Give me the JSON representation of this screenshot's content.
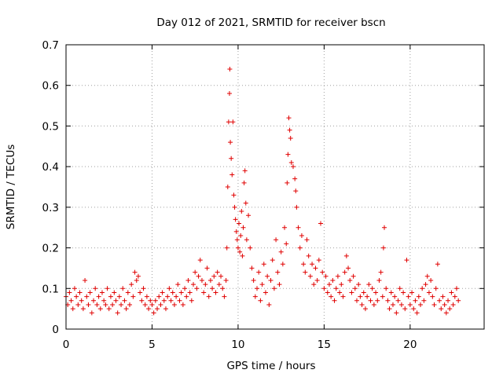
{
  "chart_data": {
    "type": "scatter",
    "title": "Day 012 of 2021, SRMTID for receiver bscn",
    "xlabel": "GPS time / hours",
    "ylabel": "SRMTID / TECUs",
    "xlim": [
      0,
      24.3
    ],
    "ylim": [
      0,
      0.7
    ],
    "xticks": [
      0,
      5,
      10,
      15,
      20
    ],
    "yticks": [
      0,
      0.1,
      0.2,
      0.3,
      0.4,
      0.5,
      0.6,
      0.7
    ],
    "xtick_labels": [
      "0",
      "5",
      "10",
      "15",
      "20"
    ],
    "ytick_labels": [
      "0",
      "0.1",
      "0.2",
      "0.3",
      "0.4",
      "0.5",
      "0.6",
      "0.7"
    ],
    "grid": true,
    "marker": "+",
    "series": [
      {
        "name": "SRMTID",
        "color": "#e00000",
        "points": [
          [
            0.0,
            0.08
          ],
          [
            0.1,
            0.06
          ],
          [
            0.2,
            0.09
          ],
          [
            0.3,
            0.07
          ],
          [
            0.4,
            0.05
          ],
          [
            0.5,
            0.1
          ],
          [
            0.6,
            0.08
          ],
          [
            0.7,
            0.06
          ],
          [
            0.8,
            0.09
          ],
          [
            0.9,
            0.07
          ],
          [
            1.0,
            0.05
          ],
          [
            1.1,
            0.12
          ],
          [
            1.2,
            0.08
          ],
          [
            1.3,
            0.06
          ],
          [
            1.4,
            0.09
          ],
          [
            1.5,
            0.04
          ],
          [
            1.6,
            0.07
          ],
          [
            1.7,
            0.1
          ],
          [
            1.8,
            0.06
          ],
          [
            1.9,
            0.08
          ],
          [
            2.0,
            0.05
          ],
          [
            2.1,
            0.09
          ],
          [
            2.2,
            0.07
          ],
          [
            2.3,
            0.06
          ],
          [
            2.4,
            0.1
          ],
          [
            2.5,
            0.05
          ],
          [
            2.6,
            0.08
          ],
          [
            2.7,
            0.06
          ],
          [
            2.8,
            0.09
          ],
          [
            2.9,
            0.07
          ],
          [
            3.0,
            0.04
          ],
          [
            3.1,
            0.08
          ],
          [
            3.2,
            0.06
          ],
          [
            3.3,
            0.1
          ],
          [
            3.4,
            0.07
          ],
          [
            3.5,
            0.05
          ],
          [
            3.6,
            0.09
          ],
          [
            3.7,
            0.06
          ],
          [
            3.8,
            0.11
          ],
          [
            3.9,
            0.08
          ],
          [
            4.0,
            0.14
          ],
          [
            4.1,
            0.12
          ],
          [
            4.2,
            0.13
          ],
          [
            4.3,
            0.09
          ],
          [
            4.4,
            0.07
          ],
          [
            4.5,
            0.1
          ],
          [
            4.6,
            0.06
          ],
          [
            4.7,
            0.08
          ],
          [
            4.8,
            0.05
          ],
          [
            4.9,
            0.07
          ],
          [
            5.0,
            0.06
          ],
          [
            5.1,
            0.04
          ],
          [
            5.2,
            0.07
          ],
          [
            5.3,
            0.05
          ],
          [
            5.4,
            0.08
          ],
          [
            5.5,
            0.06
          ],
          [
            5.6,
            0.09
          ],
          [
            5.7,
            0.07
          ],
          [
            5.8,
            0.05
          ],
          [
            5.9,
            0.08
          ],
          [
            6.0,
            0.1
          ],
          [
            6.1,
            0.07
          ],
          [
            6.2,
            0.09
          ],
          [
            6.3,
            0.06
          ],
          [
            6.4,
            0.08
          ],
          [
            6.5,
            0.11
          ],
          [
            6.6,
            0.07
          ],
          [
            6.7,
            0.09
          ],
          [
            6.8,
            0.06
          ],
          [
            6.9,
            0.1
          ],
          [
            7.0,
            0.08
          ],
          [
            7.1,
            0.12
          ],
          [
            7.2,
            0.09
          ],
          [
            7.3,
            0.07
          ],
          [
            7.4,
            0.11
          ],
          [
            7.5,
            0.14
          ],
          [
            7.6,
            0.1
          ],
          [
            7.7,
            0.13
          ],
          [
            7.8,
            0.17
          ],
          [
            7.9,
            0.12
          ],
          [
            8.0,
            0.09
          ],
          [
            8.1,
            0.11
          ],
          [
            8.2,
            0.15
          ],
          [
            8.3,
            0.08
          ],
          [
            8.4,
            0.12
          ],
          [
            8.5,
            0.1
          ],
          [
            8.6,
            0.13
          ],
          [
            8.7,
            0.09
          ],
          [
            8.8,
            0.14
          ],
          [
            8.9,
            0.11
          ],
          [
            9.0,
            0.13
          ],
          [
            9.1,
            0.1
          ],
          [
            9.2,
            0.08
          ],
          [
            9.3,
            0.12
          ],
          [
            9.35,
            0.2
          ],
          [
            9.4,
            0.35
          ],
          [
            9.45,
            0.51
          ],
          [
            9.5,
            0.58
          ],
          [
            9.52,
            0.64
          ],
          [
            9.55,
            0.46
          ],
          [
            9.6,
            0.42
          ],
          [
            9.65,
            0.38
          ],
          [
            9.7,
            0.51
          ],
          [
            9.75,
            0.33
          ],
          [
            9.8,
            0.3
          ],
          [
            9.85,
            0.27
          ],
          [
            9.9,
            0.24
          ],
          [
            9.95,
            0.22
          ],
          [
            10.0,
            0.2
          ],
          [
            10.05,
            0.26
          ],
          [
            10.1,
            0.19
          ],
          [
            10.15,
            0.23
          ],
          [
            10.2,
            0.29
          ],
          [
            10.25,
            0.18
          ],
          [
            10.3,
            0.25
          ],
          [
            10.35,
            0.36
          ],
          [
            10.4,
            0.39
          ],
          [
            10.45,
            0.31
          ],
          [
            10.5,
            0.22
          ],
          [
            10.6,
            0.28
          ],
          [
            10.7,
            0.2
          ],
          [
            10.8,
            0.15
          ],
          [
            10.9,
            0.12
          ],
          [
            11.0,
            0.08
          ],
          [
            11.1,
            0.1
          ],
          [
            11.2,
            0.14
          ],
          [
            11.3,
            0.07
          ],
          [
            11.4,
            0.11
          ],
          [
            11.5,
            0.16
          ],
          [
            11.6,
            0.09
          ],
          [
            11.7,
            0.13
          ],
          [
            11.8,
            0.06
          ],
          [
            11.9,
            0.12
          ],
          [
            12.0,
            0.17
          ],
          [
            12.1,
            0.1
          ],
          [
            12.2,
            0.22
          ],
          [
            12.3,
            0.14
          ],
          [
            12.4,
            0.11
          ],
          [
            12.5,
            0.19
          ],
          [
            12.6,
            0.16
          ],
          [
            12.7,
            0.25
          ],
          [
            12.8,
            0.21
          ],
          [
            12.85,
            0.36
          ],
          [
            12.9,
            0.43
          ],
          [
            12.95,
            0.52
          ],
          [
            13.0,
            0.49
          ],
          [
            13.05,
            0.47
          ],
          [
            13.1,
            0.41
          ],
          [
            13.2,
            0.4
          ],
          [
            13.3,
            0.37
          ],
          [
            13.35,
            0.34
          ],
          [
            13.4,
            0.3
          ],
          [
            13.5,
            0.25
          ],
          [
            13.6,
            0.2
          ],
          [
            13.7,
            0.23
          ],
          [
            13.8,
            0.16
          ],
          [
            13.9,
            0.14
          ],
          [
            14.0,
            0.22
          ],
          [
            14.1,
            0.18
          ],
          [
            14.2,
            0.13
          ],
          [
            14.3,
            0.16
          ],
          [
            14.4,
            0.11
          ],
          [
            14.5,
            0.15
          ],
          [
            14.6,
            0.12
          ],
          [
            14.7,
            0.17
          ],
          [
            14.8,
            0.26
          ],
          [
            14.9,
            0.14
          ],
          [
            15.0,
            0.1
          ],
          [
            15.1,
            0.13
          ],
          [
            15.2,
            0.09
          ],
          [
            15.3,
            0.11
          ],
          [
            15.4,
            0.08
          ],
          [
            15.5,
            0.12
          ],
          [
            15.6,
            0.07
          ],
          [
            15.7,
            0.1
          ],
          [
            15.8,
            0.13
          ],
          [
            15.9,
            0.09
          ],
          [
            16.0,
            0.11
          ],
          [
            16.1,
            0.08
          ],
          [
            16.2,
            0.14
          ],
          [
            16.3,
            0.18
          ],
          [
            16.4,
            0.15
          ],
          [
            16.5,
            0.12
          ],
          [
            16.6,
            0.09
          ],
          [
            16.7,
            0.13
          ],
          [
            16.8,
            0.1
          ],
          [
            16.9,
            0.07
          ],
          [
            17.0,
            0.11
          ],
          [
            17.1,
            0.08
          ],
          [
            17.2,
            0.06
          ],
          [
            17.3,
            0.09
          ],
          [
            17.4,
            0.05
          ],
          [
            17.5,
            0.08
          ],
          [
            17.6,
            0.11
          ],
          [
            17.7,
            0.07
          ],
          [
            17.8,
            0.1
          ],
          [
            17.9,
            0.06
          ],
          [
            18.0,
            0.09
          ],
          [
            18.1,
            0.07
          ],
          [
            18.2,
            0.12
          ],
          [
            18.3,
            0.14
          ],
          [
            18.4,
            0.08
          ],
          [
            18.45,
            0.2
          ],
          [
            18.5,
            0.25
          ],
          [
            18.6,
            0.1
          ],
          [
            18.7,
            0.07
          ],
          [
            18.8,
            0.05
          ],
          [
            18.9,
            0.09
          ],
          [
            19.0,
            0.06
          ],
          [
            19.1,
            0.08
          ],
          [
            19.2,
            0.04
          ],
          [
            19.3,
            0.07
          ],
          [
            19.4,
            0.1
          ],
          [
            19.5,
            0.06
          ],
          [
            19.6,
            0.09
          ],
          [
            19.7,
            0.05
          ],
          [
            19.8,
            0.17
          ],
          [
            19.9,
            0.08
          ],
          [
            20.0,
            0.06
          ],
          [
            20.1,
            0.09
          ],
          [
            20.2,
            0.05
          ],
          [
            20.3,
            0.07
          ],
          [
            20.4,
            0.04
          ],
          [
            20.5,
            0.08
          ],
          [
            20.6,
            0.06
          ],
          [
            20.7,
            0.1
          ],
          [
            20.8,
            0.07
          ],
          [
            20.9,
            0.11
          ],
          [
            21.0,
            0.13
          ],
          [
            21.1,
            0.09
          ],
          [
            21.2,
            0.12
          ],
          [
            21.3,
            0.08
          ],
          [
            21.4,
            0.06
          ],
          [
            21.5,
            0.1
          ],
          [
            21.6,
            0.16
          ],
          [
            21.7,
            0.07
          ],
          [
            21.8,
            0.05
          ],
          [
            21.9,
            0.08
          ],
          [
            22.0,
            0.06
          ],
          [
            22.1,
            0.04
          ],
          [
            22.2,
            0.07
          ],
          [
            22.3,
            0.05
          ],
          [
            22.4,
            0.09
          ],
          [
            22.5,
            0.06
          ],
          [
            22.6,
            0.08
          ],
          [
            22.7,
            0.1
          ],
          [
            22.8,
            0.07
          ]
        ]
      }
    ]
  }
}
